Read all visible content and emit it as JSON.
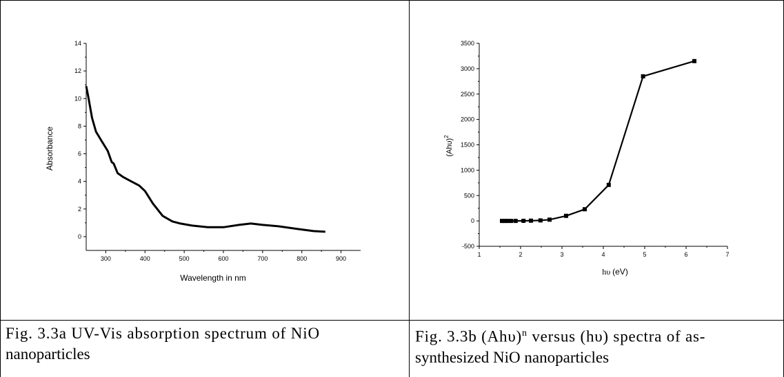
{
  "chart_data": [
    {
      "type": "line",
      "xlabel": "Wavelength in nm",
      "ylabel": "Absorbance",
      "xlim": [
        250,
        950
      ],
      "ylim": [
        -1,
        14
      ],
      "xticks": [
        300,
        400,
        500,
        600,
        700,
        800,
        900
      ],
      "yticks": [
        0,
        2,
        4,
        6,
        8,
        10,
        12,
        14
      ],
      "grid": false,
      "series": [
        {
          "x": [
            250,
            255,
            265,
            275,
            290,
            305,
            315,
            320,
            330,
            345,
            365,
            385,
            400,
            420,
            445,
            470,
            490,
            520,
            560,
            600,
            640,
            670,
            700,
            740,
            790,
            830,
            860
          ],
          "y": [
            10.9,
            10.2,
            8.6,
            7.6,
            6.9,
            6.2,
            5.4,
            5.3,
            4.6,
            4.3,
            4.0,
            3.7,
            3.3,
            2.4,
            1.5,
            1.1,
            0.95,
            0.8,
            0.68,
            0.68,
            0.85,
            0.95,
            0.85,
            0.75,
            0.55,
            0.4,
            0.35
          ]
        }
      ]
    },
    {
      "type": "line",
      "xlabel_symbol": "hυ",
      "xlabel_unit": "(eV)",
      "ylabel": "(Ahυ)",
      "ylabel_sup": "2",
      "xlim": [
        1,
        7
      ],
      "ylim": [
        -500,
        3500
      ],
      "xticks": [
        1,
        2,
        3,
        4,
        5,
        6,
        7
      ],
      "yticks": [
        -500,
        0,
        500,
        1000,
        1500,
        2000,
        2500,
        3000,
        3500
      ],
      "grid": false,
      "series": [
        {
          "marker": "square",
          "x": [
            1.55,
            1.62,
            1.68,
            1.77,
            1.88,
            2.07,
            2.25,
            2.48,
            2.7,
            3.1,
            3.55,
            4.13,
            4.96,
            6.2
          ],
          "y": [
            0,
            0,
            0,
            0,
            0,
            2,
            5,
            10,
            25,
            100,
            230,
            710,
            2850,
            3150
          ]
        }
      ]
    }
  ],
  "captions": {
    "left_line1": "Fig. 3.3a UV-Vis absorption spectrum of NiO",
    "left_line2": "nanoparticles",
    "right_line1_pre": "Fig. 3.3b (Ahυ)",
    "right_line1_sup": "n",
    "right_line1_post": " versus (hυ) spectra of as-",
    "right_line2": "synthesized NiO nanoparticles"
  }
}
